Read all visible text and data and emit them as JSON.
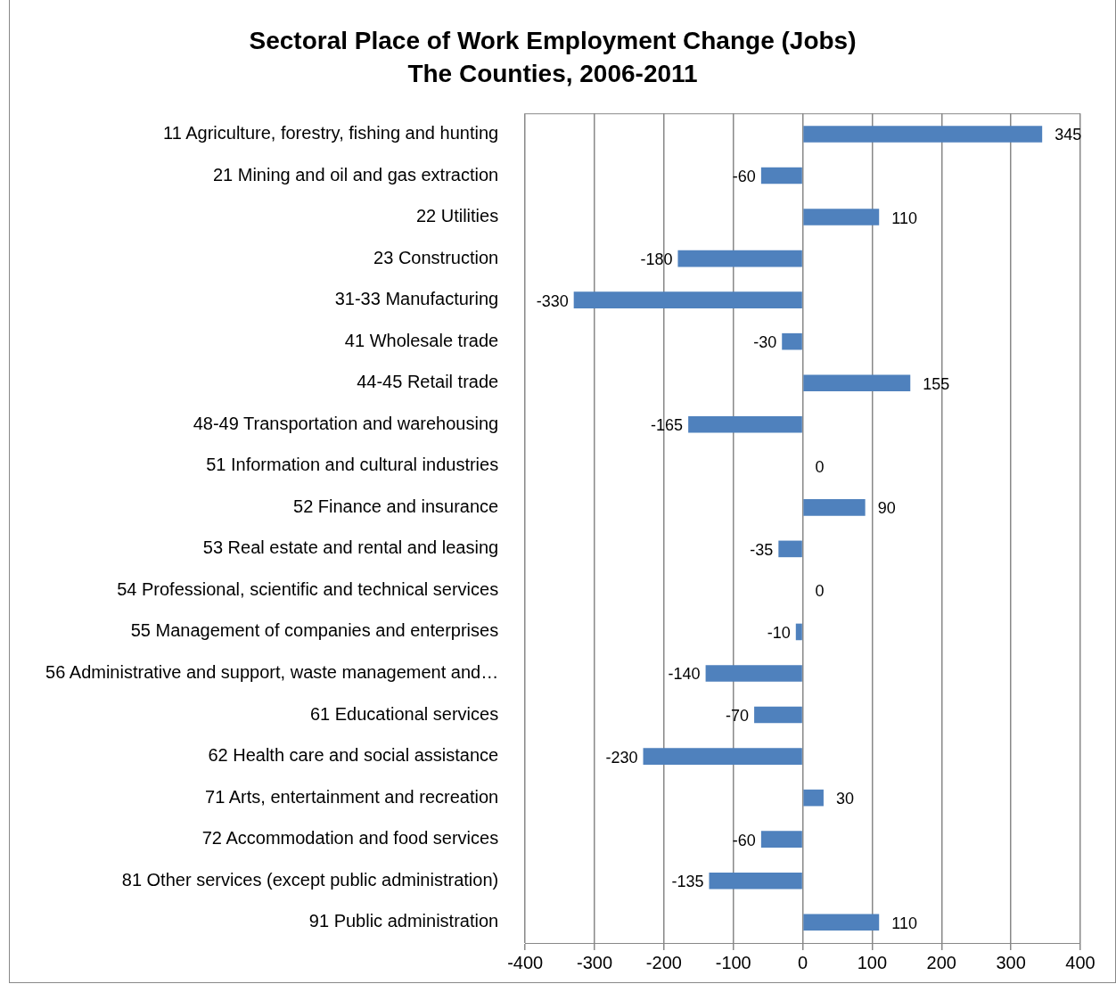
{
  "chart_data": {
    "type": "bar",
    "orientation": "horizontal",
    "title": "Sectoral Place of Work Employment Change (Jobs)",
    "subtitle": "The Counties, 2006-2011",
    "categories": [
      "11 Agriculture, forestry, fishing and hunting",
      "21 Mining and oil and gas extraction",
      "22 Utilities",
      "23 Construction",
      "31-33 Manufacturing",
      "41 Wholesale trade",
      "44-45 Retail trade",
      "48-49 Transportation and warehousing",
      "51 Information and cultural industries",
      "52 Finance and insurance",
      "53 Real estate and rental and leasing",
      "54 Professional, scientific and technical services",
      "55 Management of companies and enterprises",
      "56 Administrative and support, waste management and…",
      "61 Educational services",
      "62 Health care and social assistance",
      "71 Arts, entertainment and recreation",
      "72 Accommodation and food services",
      "81 Other services (except public administration)",
      "91 Public administration"
    ],
    "values": [
      345,
      -60,
      110,
      -180,
      -330,
      -30,
      155,
      -165,
      0,
      90,
      -35,
      0,
      -10,
      -140,
      -70,
      -230,
      30,
      -60,
      -135,
      110
    ],
    "color": "#4f81bd",
    "xlim": [
      -400,
      400
    ],
    "xticks": [
      -400,
      -300,
      -200,
      -100,
      0,
      100,
      200,
      300,
      400
    ],
    "grid": "x",
    "data_labels": true
  }
}
